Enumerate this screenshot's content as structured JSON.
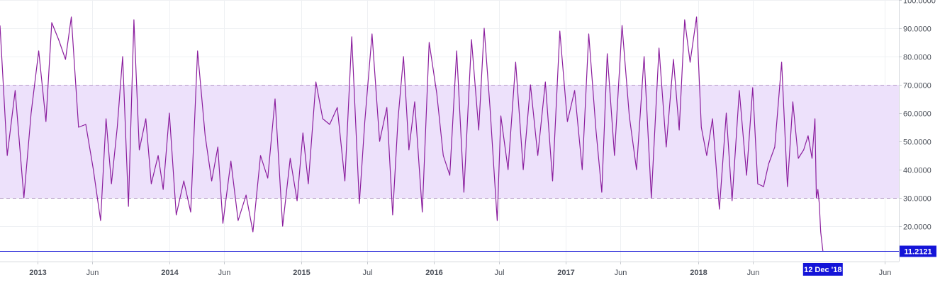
{
  "chart_data": {
    "type": "line",
    "title": "",
    "xlabel": "",
    "ylabel": "",
    "ylim": [
      7.5,
      100
    ],
    "xlim": [
      "2012-09-20",
      "2019-07-10"
    ],
    "grid": true,
    "y_ticks": [
      20,
      30,
      40,
      50,
      60,
      70,
      80,
      90,
      100
    ],
    "y_tick_labels": [
      "20.0000",
      "30.0000",
      "40.0000",
      "50.0000",
      "60.0000",
      "70.0000",
      "80.0000",
      "90.0000",
      "100.0000"
    ],
    "x_ticks": [
      {
        "date": "2013-01-01",
        "label": "2013"
      },
      {
        "date": "2013-06-01",
        "label": "Jun"
      },
      {
        "date": "2014-01-01",
        "label": "2014"
      },
      {
        "date": "2014-06-01",
        "label": "Jun"
      },
      {
        "date": "2015-01-01",
        "label": "2015"
      },
      {
        "date": "2015-07-01",
        "label": "Jul"
      },
      {
        "date": "2016-01-01",
        "label": "2016"
      },
      {
        "date": "2016-07-01",
        "label": "Jul"
      },
      {
        "date": "2017-01-01",
        "label": "2017"
      },
      {
        "date": "2017-06-01",
        "label": "Jun"
      },
      {
        "date": "2018-01-01",
        "label": "2018"
      },
      {
        "date": "2018-06-01",
        "label": "Jun"
      },
      {
        "date": "2019-06-01",
        "label": "Jun"
      }
    ],
    "bands": [
      {
        "from": 30,
        "to": 70,
        "color": "#ede1fb"
      }
    ],
    "band_lines": [
      30,
      70
    ],
    "series": [
      {
        "color": "#8b1e9e",
        "x": [
          "2012-09-20",
          "2012-10-10",
          "2012-11-01",
          "2012-11-25",
          "2012-12-15",
          "2013-01-05",
          "2013-01-25",
          "2013-02-10",
          "2013-03-01",
          "2013-03-20",
          "2013-04-05",
          "2013-04-25",
          "2013-05-15",
          "2013-06-05",
          "2013-06-25",
          "2013-07-10",
          "2013-07-25",
          "2013-08-10",
          "2013-08-25",
          "2013-09-10",
          "2013-09-25",
          "2013-10-10",
          "2013-10-28",
          "2013-11-12",
          "2013-12-01",
          "2013-12-15",
          "2014-01-01",
          "2014-01-20",
          "2014-02-10",
          "2014-03-01",
          "2014-03-20",
          "2014-04-10",
          "2014-04-28",
          "2014-05-15",
          "2014-05-29",
          "2014-06-20",
          "2014-07-10",
          "2014-08-01",
          "2014-08-20",
          "2014-09-10",
          "2014-09-30",
          "2014-10-20",
          "2014-11-10",
          "2014-12-01",
          "2014-12-20",
          "2015-01-05",
          "2015-01-20",
          "2015-02-10",
          "2015-03-01",
          "2015-03-20",
          "2015-04-10",
          "2015-05-01",
          "2015-05-20",
          "2015-06-10",
          "2015-06-25",
          "2015-07-15",
          "2015-08-05",
          "2015-08-25",
          "2015-09-10",
          "2015-09-25",
          "2015-10-10",
          "2015-10-25",
          "2015-11-10",
          "2015-12-01",
          "2015-12-20",
          "2016-01-10",
          "2016-01-28",
          "2016-02-15",
          "2016-03-05",
          "2016-03-25",
          "2016-04-15",
          "2016-05-05",
          "2016-05-20",
          "2016-06-05",
          "2016-06-25",
          "2016-07-05",
          "2016-07-25",
          "2016-08-15",
          "2016-09-05",
          "2016-09-25",
          "2016-10-15",
          "2016-11-05",
          "2016-11-25",
          "2016-12-15",
          "2017-01-05",
          "2017-01-25",
          "2017-02-15",
          "2017-03-05",
          "2017-03-25",
          "2017-04-10",
          "2017-04-25",
          "2017-05-15",
          "2017-06-05",
          "2017-06-25",
          "2017-07-15",
          "2017-08-05",
          "2017-08-25",
          "2017-09-15",
          "2017-10-05",
          "2017-10-25",
          "2017-11-10",
          "2017-11-25",
          "2017-12-10",
          "2017-12-28",
          "2018-01-10",
          "2018-01-25",
          "2018-02-10",
          "2018-03-01",
          "2018-03-20",
          "2018-04-05",
          "2018-04-25",
          "2018-05-15",
          "2018-06-01",
          "2018-06-15",
          "2018-07-01",
          "2018-07-15",
          "2018-08-01",
          "2018-08-20",
          "2018-09-05",
          "2018-09-20",
          "2018-10-05",
          "2018-10-20",
          "2018-11-01",
          "2018-11-12",
          "2018-11-20",
          "2018-11-24",
          "2018-11-28",
          "2018-12-02",
          "2018-12-06",
          "2018-12-12"
        ],
        "values": [
          91,
          45,
          68,
          30,
          60,
          82,
          57,
          92,
          86,
          79,
          94,
          55,
          56,
          40,
          22,
          58,
          35,
          55,
          80,
          27,
          93,
          47,
          58,
          35,
          45,
          33,
          60,
          24,
          36,
          25,
          82,
          52,
          36,
          48,
          21,
          43,
          22,
          31,
          18,
          45,
          37,
          65,
          20,
          44,
          29,
          53,
          35,
          71,
          58,
          56,
          62,
          36,
          87,
          28,
          57,
          88,
          50,
          62,
          24,
          58,
          80,
          47,
          64,
          25,
          85,
          67,
          45,
          38,
          82,
          32,
          86,
          54,
          90,
          62,
          22,
          59,
          40,
          78,
          40,
          70,
          45,
          71,
          36,
          89,
          57,
          68,
          40,
          88,
          54,
          32,
          81,
          45,
          91,
          59,
          40,
          80,
          30,
          83,
          48,
          79,
          54,
          93,
          78,
          94,
          55,
          45,
          58,
          26,
          60,
          29,
          68,
          38,
          69,
          35,
          34,
          42,
          48,
          78,
          34,
          64,
          44,
          47,
          52,
          44,
          58,
          30,
          33,
          28,
          18,
          11.2121
        ]
      }
    ],
    "last_value": {
      "label": "11.2121",
      "value": 11.2121,
      "line_color": "#0f0fd4",
      "badge_color": "#1414d8",
      "text_color": "#ffffff"
    },
    "crosshair_date": {
      "label": "12 Dec '18",
      "date": "2018-12-12",
      "badge_color": "#1414d8",
      "text_color": "#ffffff"
    }
  }
}
